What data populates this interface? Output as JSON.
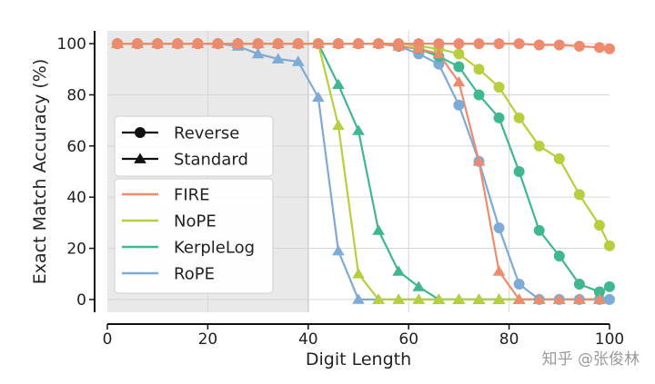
{
  "chart_data": {
    "type": "line",
    "xlabel": "Digit Length",
    "ylabel": "Exact Match Accuracy (%)",
    "xlim": [
      0,
      100
    ],
    "ylim": [
      -5,
      105
    ],
    "xticks": [
      0,
      20,
      40,
      60,
      80,
      100
    ],
    "yticks": [
      0,
      20,
      40,
      60,
      80,
      100
    ],
    "grid": true,
    "shaded_region": [
      0,
      40
    ],
    "legend_placement": "center-left",
    "format_legend": [
      {
        "name": "Reverse",
        "marker": "circle"
      },
      {
        "name": "Standard",
        "marker": "triangle"
      }
    ],
    "series": [
      {
        "name": "FIRE",
        "format": "Reverse",
        "color": "#ee8a6d",
        "x": [
          2,
          6,
          10,
          14,
          18,
          22,
          26,
          30,
          34,
          38,
          42,
          46,
          50,
          54,
          58,
          62,
          66,
          70,
          74,
          78,
          82,
          86,
          90,
          94,
          98,
          100
        ],
        "y": [
          100,
          100,
          100,
          100,
          100,
          100,
          100,
          100,
          100,
          100,
          100,
          100,
          100,
          100,
          100,
          100,
          100,
          100,
          100,
          100,
          100,
          99.5,
          99.5,
          99,
          98.5,
          98
        ]
      },
      {
        "name": "FIRE",
        "format": "Standard",
        "color": "#ee8a6d",
        "x": [
          2,
          6,
          10,
          14,
          18,
          22,
          26,
          30,
          34,
          38,
          42,
          46,
          50,
          54,
          58,
          62,
          66,
          70,
          74,
          78,
          82,
          86,
          90,
          94,
          98
        ],
        "y": [
          100,
          100,
          100,
          100,
          100,
          100,
          100,
          100,
          100,
          100,
          100,
          100,
          100,
          100,
          99,
          98,
          96,
          85,
          54,
          11,
          0,
          0,
          0,
          0,
          0
        ]
      },
      {
        "name": "NoPE",
        "format": "Reverse",
        "color": "#b6cf3e",
        "x": [
          2,
          6,
          10,
          14,
          18,
          22,
          26,
          30,
          34,
          38,
          42,
          46,
          50,
          54,
          58,
          62,
          66,
          70,
          74,
          78,
          82,
          86,
          90,
          94,
          98,
          100
        ],
        "y": [
          100,
          100,
          100,
          100,
          100,
          100,
          100,
          100,
          100,
          100,
          100,
          100,
          100,
          100,
          100,
          99,
          98,
          96,
          90,
          83,
          71,
          60,
          55,
          41,
          29,
          21
        ]
      },
      {
        "name": "NoPE",
        "format": "Standard",
        "color": "#b6cf3e",
        "x": [
          2,
          6,
          10,
          14,
          18,
          22,
          26,
          30,
          34,
          38,
          42,
          46,
          50,
          54,
          58,
          62,
          66,
          70,
          74,
          78,
          82,
          86,
          90,
          94,
          98
        ],
        "y": [
          100,
          100,
          100,
          100,
          100,
          100,
          100,
          100,
          100,
          100,
          100,
          68,
          10,
          0,
          0,
          0,
          0,
          0,
          0,
          0,
          0,
          0,
          0,
          0,
          0
        ]
      },
      {
        "name": "KerpleLog",
        "format": "Reverse",
        "color": "#3fb790",
        "x": [
          2,
          6,
          10,
          14,
          18,
          22,
          26,
          30,
          34,
          38,
          42,
          46,
          50,
          54,
          58,
          62,
          66,
          70,
          74,
          78,
          82,
          86,
          90,
          94,
          98,
          100
        ],
        "y": [
          100,
          100,
          100,
          100,
          100,
          100,
          100,
          100,
          100,
          100,
          100,
          100,
          100,
          100,
          99,
          98,
          95,
          91,
          80,
          71,
          50,
          27,
          17,
          6,
          3,
          5
        ]
      },
      {
        "name": "KerpleLog",
        "format": "Standard",
        "color": "#3fb790",
        "x": [
          2,
          6,
          10,
          14,
          18,
          22,
          26,
          30,
          34,
          38,
          42,
          46,
          50,
          54,
          58,
          62,
          66,
          70,
          74,
          78,
          82,
          86,
          90,
          94,
          98
        ],
        "y": [
          100,
          100,
          100,
          100,
          100,
          100,
          100,
          100,
          100,
          100,
          100,
          84,
          66,
          27,
          11,
          5,
          0,
          0,
          0,
          0,
          0,
          0,
          0,
          0,
          0
        ]
      },
      {
        "name": "RoPE",
        "format": "Reverse",
        "color": "#7eaad6",
        "x": [
          2,
          6,
          10,
          14,
          18,
          22,
          26,
          30,
          34,
          38,
          42,
          46,
          50,
          54,
          58,
          62,
          66,
          70,
          74,
          78,
          82,
          86,
          90,
          94,
          98,
          100
        ],
        "y": [
          100,
          100,
          100,
          100,
          100,
          100,
          100,
          100,
          100,
          100,
          100,
          100,
          100,
          100,
          99,
          96,
          92,
          76,
          54,
          28,
          6,
          0,
          0,
          0,
          0,
          0
        ]
      },
      {
        "name": "RoPE",
        "format": "Standard",
        "color": "#7eaad6",
        "x": [
          2,
          6,
          10,
          14,
          18,
          22,
          26,
          30,
          34,
          38,
          42,
          46,
          50,
          54,
          58,
          62,
          66,
          70,
          74,
          78,
          82,
          86,
          90,
          94,
          98
        ],
        "y": [
          100,
          100,
          100,
          100,
          100,
          100,
          99,
          96,
          94,
          93,
          79,
          19,
          0,
          0,
          0,
          0,
          0,
          0,
          0,
          0,
          0,
          0,
          0,
          0,
          0
        ]
      }
    ],
    "legend_entries": [
      {
        "name": "FIRE",
        "color": "#ee8a6d"
      },
      {
        "name": "NoPE",
        "color": "#b6cf3e"
      },
      {
        "name": "KerpleLog",
        "color": "#3fb790"
      },
      {
        "name": "RoPE",
        "color": "#7eaad6"
      }
    ]
  },
  "watermark": "知乎 @张俊林"
}
